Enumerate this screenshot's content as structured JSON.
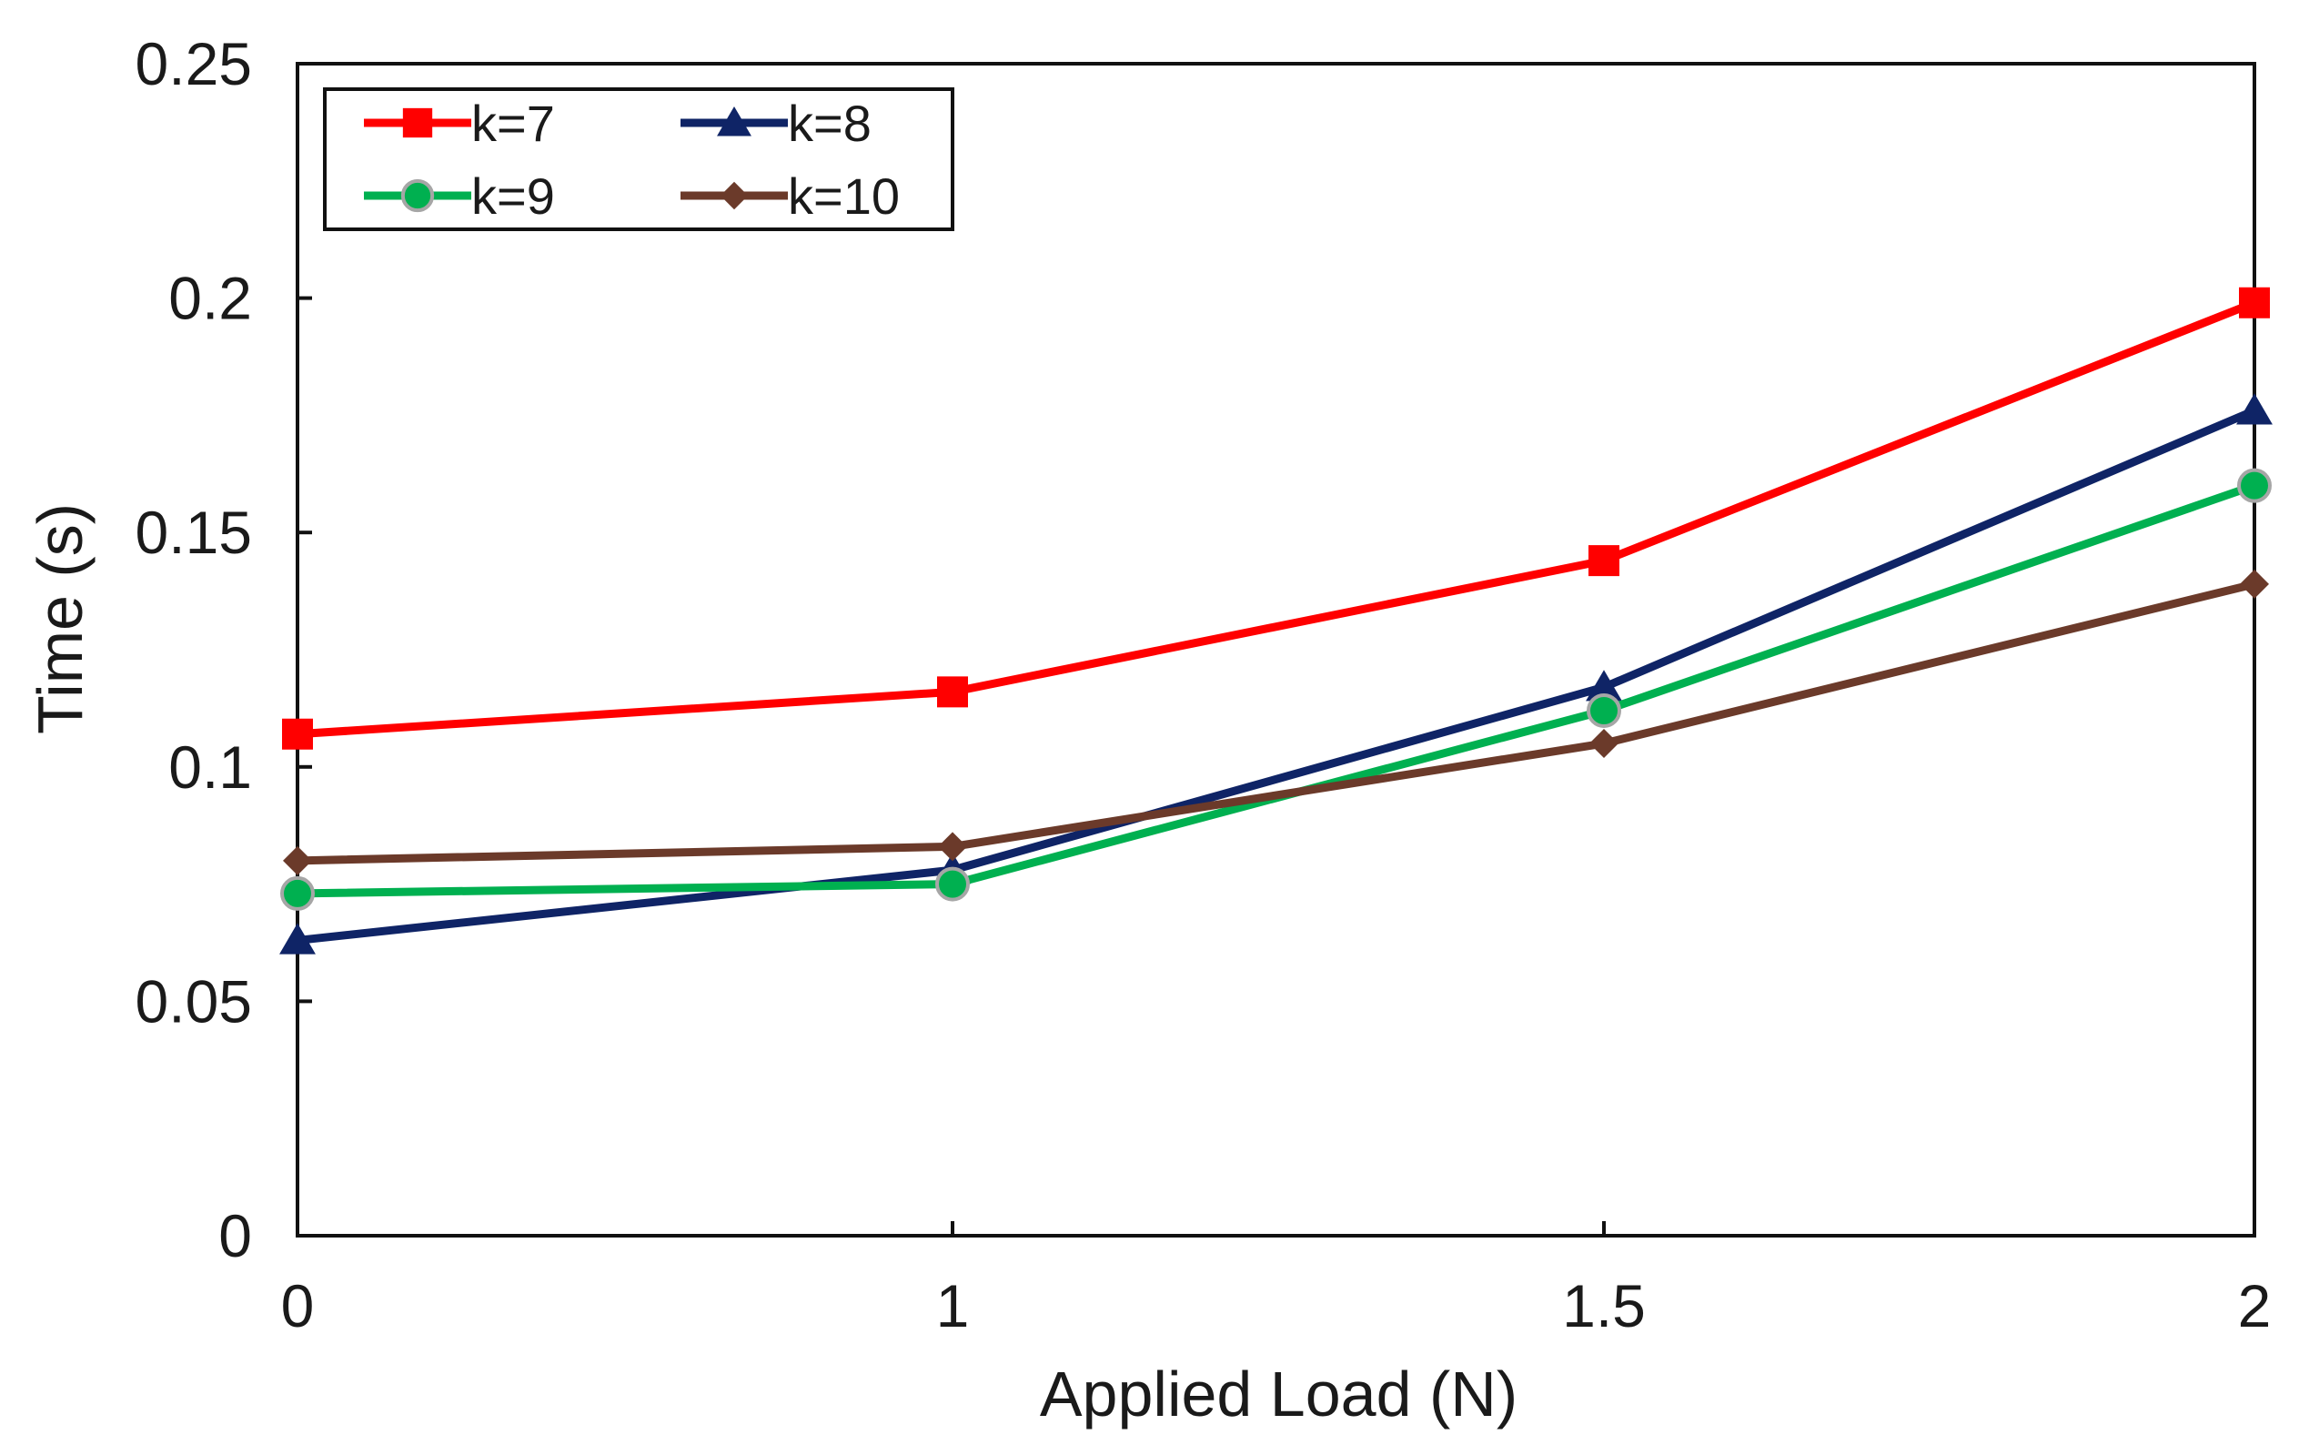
{
  "chart_data": {
    "type": "line",
    "title": "",
    "xlabel": "Applied Load (N)",
    "ylabel": "Time (s)",
    "categories": [
      "0",
      "1",
      "1.5",
      "2"
    ],
    "ylim": [
      0,
      0.25
    ],
    "yticks": [
      "0",
      "0.05",
      "0.1",
      "0.15",
      "0.2",
      "0.25"
    ],
    "grid": false,
    "legend_position": "top-left",
    "series": [
      {
        "name": "k=7",
        "marker": "square",
        "color": "#ff0000",
        "values": [
          0.107,
          0.116,
          0.144,
          0.199
        ]
      },
      {
        "name": "k=8",
        "marker": "triangle",
        "color": "#0f2466",
        "values": [
          0.063,
          0.078,
          0.117,
          0.176
        ]
      },
      {
        "name": "k=9",
        "marker": "circle",
        "color": "#00b050",
        "values": [
          0.073,
          0.075,
          0.112,
          0.16
        ]
      },
      {
        "name": "k=10",
        "marker": "diamond",
        "color": "#6b3a2a",
        "values": [
          0.08,
          0.083,
          0.105,
          0.139
        ]
      }
    ]
  }
}
